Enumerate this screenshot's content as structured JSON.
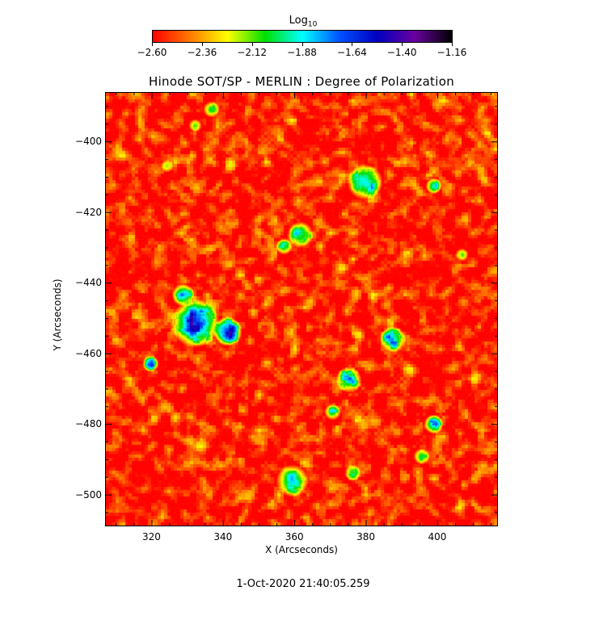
{
  "colorbar": {
    "title_base": "Log",
    "title_sub": "10",
    "colors": [
      "#ff0000",
      "#ff7a00",
      "#ffff00",
      "#00e000",
      "#00ffff",
      "#0050ff",
      "#0000c0",
      "#6a00a0",
      "#000000"
    ],
    "ticks": [
      "-2.60",
      "-2.36",
      "-2.12",
      "-1.88",
      "-1.64",
      "-1.40",
      "-1.16"
    ],
    "range": [
      -2.6,
      -1.16
    ]
  },
  "plot": {
    "title": "Hinode SOT/SP - MERLIN : Degree of Polarization",
    "xlabel": "X (Arcseconds)",
    "ylabel": "Y (Arcseconds)",
    "x_range": [
      307,
      417
    ],
    "y_range": [
      -509,
      -386
    ],
    "x_ticks": [
      "320",
      "340",
      "360",
      "380",
      "400"
    ],
    "y_ticks": [
      "-400",
      "-420",
      "-440",
      "-460",
      "-480",
      "-500"
    ],
    "x_tick_values": [
      320,
      340,
      360,
      380,
      400
    ],
    "y_tick_values": [
      -400,
      -420,
      -440,
      -460,
      -480,
      -500
    ]
  },
  "timestamp": "1-Oct-2020 21:40:05.259"
}
